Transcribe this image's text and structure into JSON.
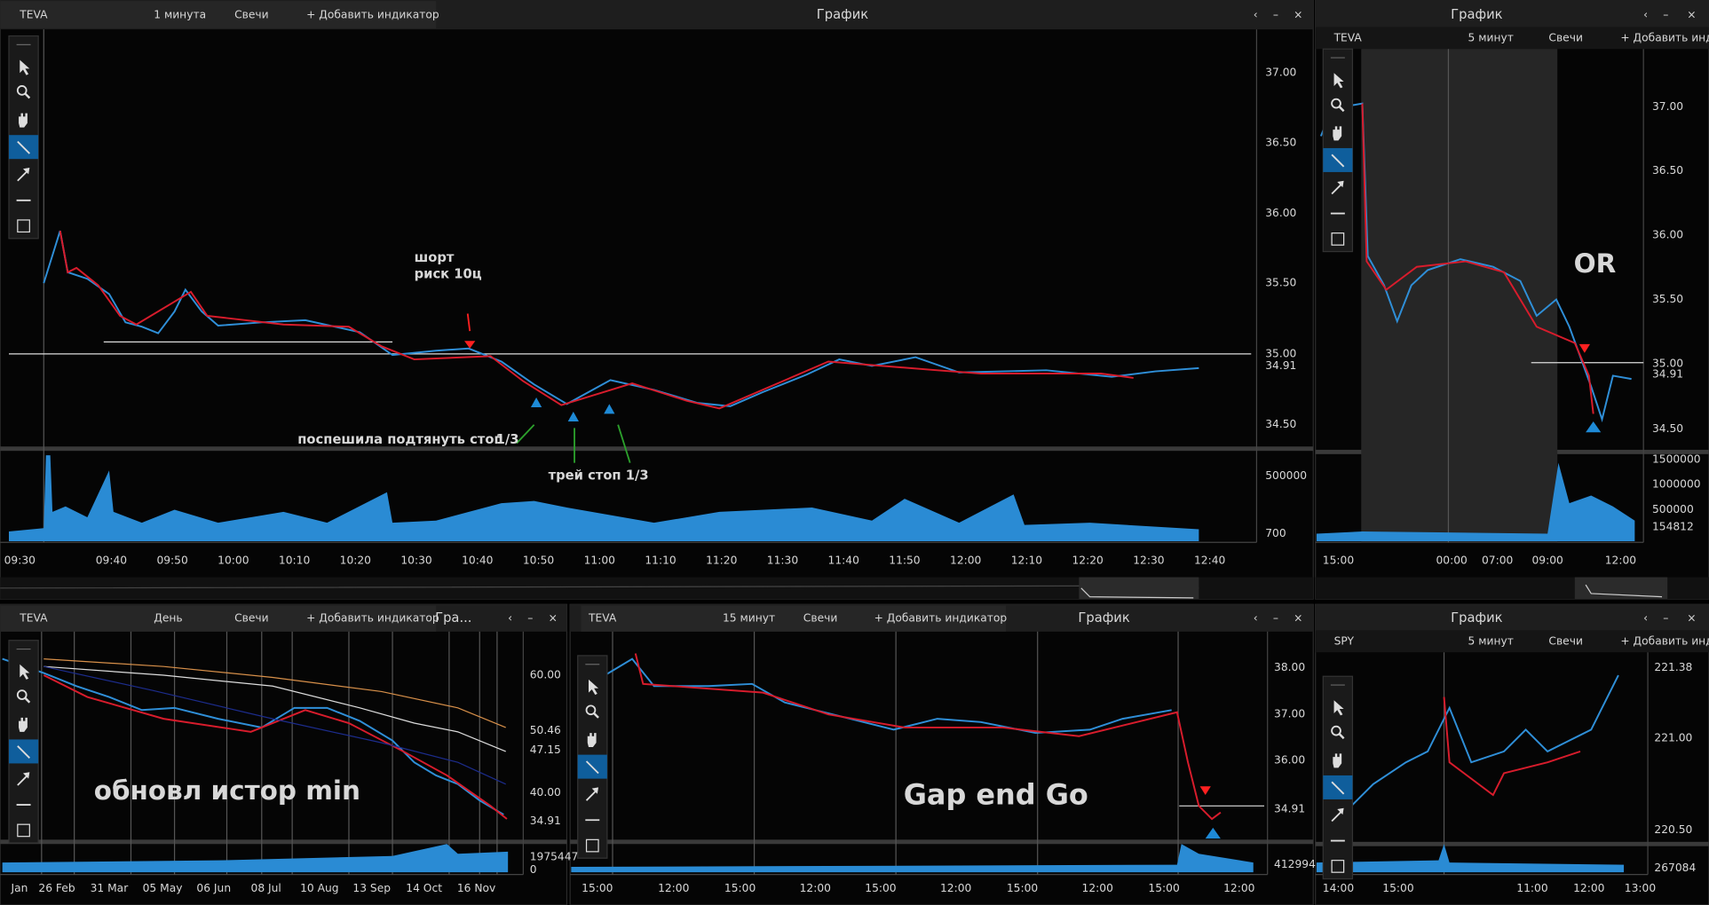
{
  "panels": [
    {
      "header": [
        "TEVA",
        "1 минута",
        "Свечи",
        "+ Добавить индикатор"
      ],
      "window_title": "График",
      "y_labels": [
        "37.00",
        "36.50",
        "36.00",
        "35.50",
        "35.00",
        "34.91",
        "34.50",
        "500000",
        "700"
      ],
      "x_labels": [
        "09:30",
        "09:40",
        "09:50",
        "10:00",
        "10:10",
        "10:20",
        "10:30",
        "10:40",
        "10:50",
        "11:00",
        "11:10",
        "11:20",
        "11:30",
        "11:40",
        "11:50",
        "12:00",
        "12:10",
        "12:20",
        "12:30",
        "12:40"
      ],
      "annotations": [
        {
          "text": "шорт",
          "color": "#ff2020"
        },
        {
          "text": "риск 10ц",
          "color": "#ff2020"
        },
        {
          "text": "поспешила подтянуть стоп",
          "color": "#ffff30"
        },
        {
          "text": "1/3",
          "color": "#2ca02c"
        },
        {
          "text": "трей стоп 1/3",
          "color": "#2ca02c"
        }
      ]
    },
    {
      "header": [
        "TEVA",
        "5 минут",
        "Свечи",
        "+ Добавить индик"
      ],
      "window_title": "График",
      "y_labels": [
        "37.00",
        "36.50",
        "36.00",
        "35.50",
        "35.00",
        "34.91",
        "34.50",
        "1500000",
        "1000000",
        "500000",
        "154812"
      ],
      "x_labels": [
        "15:00",
        "00:00",
        "07:00",
        "09:00",
        "12:00"
      ],
      "annotations": [
        {
          "text": "OR",
          "color": "#8b1a8b"
        }
      ]
    },
    {
      "header": [
        "TEVA",
        "День",
        "Свечи",
        "+ Добавить индикатор"
      ],
      "window_title": "Гра...",
      "y_labels": [
        "60.00",
        "50.46",
        "47.15",
        "40.00",
        "34.91",
        "1975447",
        "0"
      ],
      "x_labels": [
        "Jan",
        "26 Feb",
        "31 Mar",
        "05 May",
        "06 Jun",
        "08 Jul",
        "10 Aug",
        "13 Sep",
        "14 Oct",
        "16 Nov"
      ],
      "annotations": [
        {
          "text": "обновл  истор min",
          "color": "#8b1a8b"
        }
      ]
    },
    {
      "header": [
        "TEVA",
        "15 минут",
        "Свечи",
        "+ Добавить индикатор"
      ],
      "window_title": "График",
      "y_labels": [
        "38.00",
        "37.00",
        "36.00",
        "34.91",
        "412994"
      ],
      "x_labels": [
        "15:00",
        "12:00",
        "15:00",
        "12:00",
        "15:00",
        "12:00",
        "15:00",
        "12:00",
        "15:00",
        "12:00"
      ],
      "annotations": [
        {
          "text": "Gap end Go",
          "color": "#8b1a8b"
        }
      ]
    },
    {
      "header": [
        "SPY",
        "5 минут",
        "Свечи",
        "+ Добавить инди"
      ],
      "window_title": "График",
      "y_labels": [
        "221.38",
        "221.00",
        "220.50",
        "267084"
      ],
      "x_labels": [
        "14:00",
        "15:00",
        "11:00",
        "12:00",
        "13:00"
      ],
      "annotations": []
    }
  ]
}
